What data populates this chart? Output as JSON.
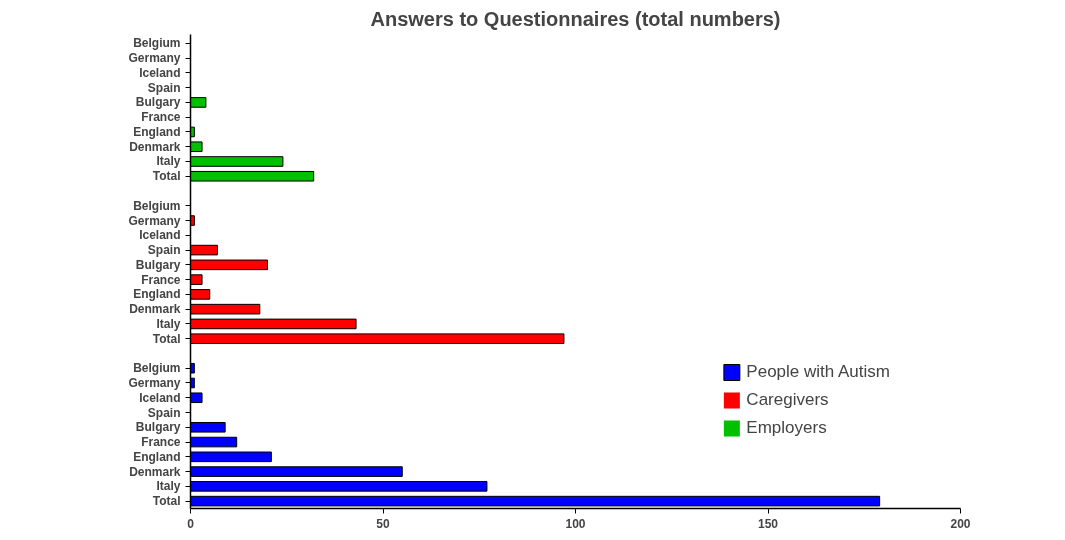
{
  "chart_data": {
    "type": "bar",
    "orientation": "horizontal",
    "title": "Answers to Questionnaires (total numbers)",
    "categories": [
      "Belgium",
      "Germany",
      "Iceland",
      "Spain",
      "Bulgary",
      "France",
      "England",
      "Denmark",
      "Italy",
      "Total",
      null,
      "Belgium",
      "Germany",
      "Iceland",
      "Spain",
      "Bulgary",
      "France",
      "England",
      "Denmark",
      "Italy",
      "Total",
      null,
      "Belgium",
      "Germany",
      "Iceland",
      "Spain",
      "Bulgary",
      "France",
      "England",
      "Denmark",
      "Italy",
      "Total"
    ],
    "series": [
      {
        "name": "People with Autism",
        "color": "#0000ff",
        "values": [
          null,
          null,
          null,
          null,
          null,
          null,
          null,
          null,
          null,
          null,
          null,
          null,
          null,
          null,
          null,
          null,
          null,
          null,
          null,
          null,
          null,
          null,
          1,
          1,
          3,
          0,
          9,
          12,
          21,
          55,
          77,
          179
        ]
      },
      {
        "name": "Caregivers",
        "color": "#ff0000",
        "values": [
          null,
          null,
          null,
          null,
          null,
          null,
          null,
          null,
          null,
          null,
          null,
          0,
          1,
          0,
          7,
          20,
          3,
          5,
          18,
          43,
          97,
          null,
          null,
          null,
          null,
          null,
          null,
          null,
          null,
          null,
          null,
          null
        ]
      },
      {
        "name": "Employers",
        "color": "#00c000",
        "values": [
          0,
          0,
          0,
          0,
          4,
          0,
          1,
          3,
          24,
          32,
          null,
          null,
          null,
          null,
          null,
          null,
          null,
          null,
          null,
          null,
          null,
          null,
          null,
          null,
          null,
          null,
          null,
          null,
          null,
          null,
          null,
          null
        ]
      }
    ],
    "xlim": [
      0,
      200
    ],
    "xticks": [
      0,
      50,
      100,
      150,
      200
    ],
    "grid": false,
    "legend": "bottom right"
  }
}
